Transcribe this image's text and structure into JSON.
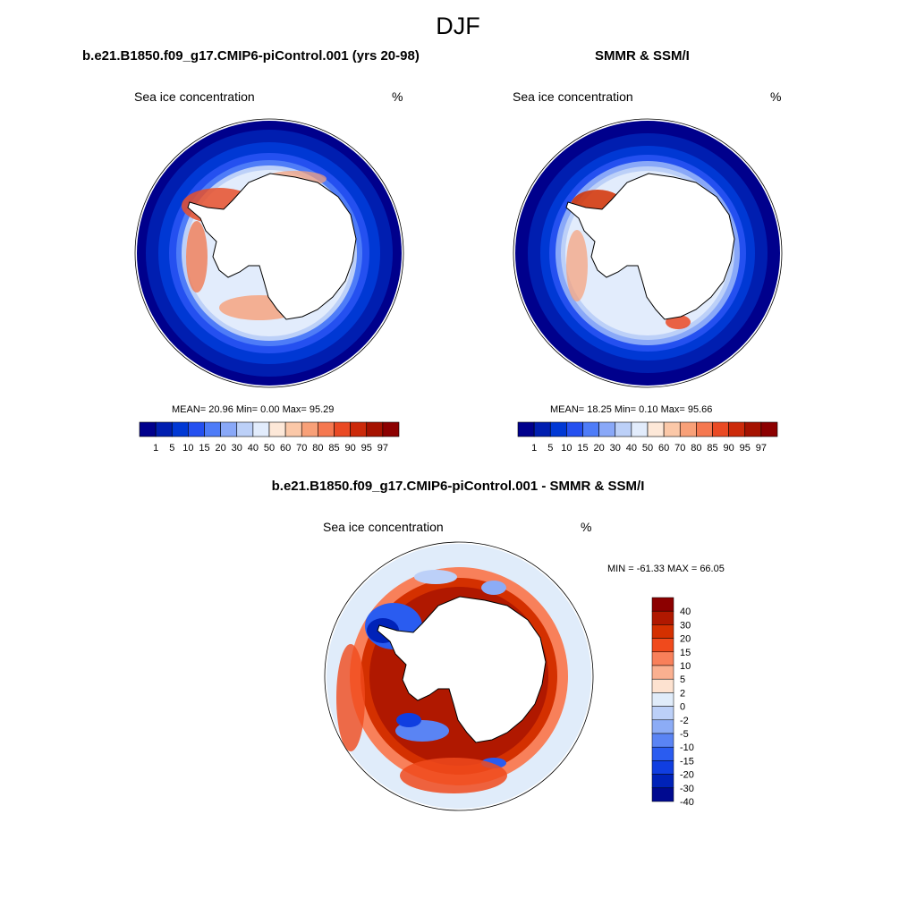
{
  "title": "DJF",
  "colors": {
    "ice_scale": [
      "#00008c",
      "#001eb0",
      "#0038d4",
      "#2450f0",
      "#4e7cf8",
      "#89a8f8",
      "#bcd0f8",
      "#e2ecfc",
      "#fde8d8",
      "#fbc8a8",
      "#f8a078",
      "#f57850",
      "#ea4a24",
      "#cc2a0a",
      "#a51200",
      "#8c0000"
    ],
    "diff_scale": [
      "#8c0000",
      "#b01800",
      "#d43000",
      "#f04a1c",
      "#f8805a",
      "#fab090",
      "#fde2d0",
      "#e0ecfa",
      "#bcd0f8",
      "#8cacf6",
      "#5a84f4",
      "#2a5cf0",
      "#103ee0",
      "#0022b8",
      "#000a90"
    ],
    "land": "#ffffff",
    "coast": "#000000",
    "frame": "#000000"
  },
  "panels": {
    "model": {
      "title": "b.e21.B1850.f09_g17.CMIP6-piControl.001 (yrs 20-98)",
      "variable": "Sea ice concentration",
      "units": "%",
      "stats": {
        "mean_label": "MEAN=",
        "mean": "20.96",
        "min_label": "Min=",
        "min": "0.00",
        "max_label": "Max=",
        "max": "95.29"
      }
    },
    "obs": {
      "title": "SMMR & SSM/I",
      "variable": "Sea ice concentration",
      "units": "%",
      "stats": {
        "mean_label": "MEAN=",
        "mean": "18.25",
        "min_label": "Min=",
        "min": "0.10",
        "max_label": "Max=",
        "max": "95.66"
      }
    },
    "diff": {
      "title": "b.e21.B1850.f09_g17.CMIP6-piControl.001 - SMMR & SSM/I",
      "variable": "Sea ice concentration",
      "units": "%",
      "minmax": "MIN = -61.33 MAX =  66.05"
    }
  },
  "ice_colorbar_labels": [
    "1",
    "5",
    "10",
    "15",
    "20",
    "30",
    "40",
    "50",
    "60",
    "70",
    "80",
    "85",
    "90",
    "95",
    "97"
  ],
  "diff_colorbar_labels": [
    "40",
    "30",
    "20",
    "15",
    "10",
    "5",
    "2",
    "0",
    "-2",
    "-5",
    "-10",
    "-15",
    "-20",
    "-30",
    "-40"
  ]
}
